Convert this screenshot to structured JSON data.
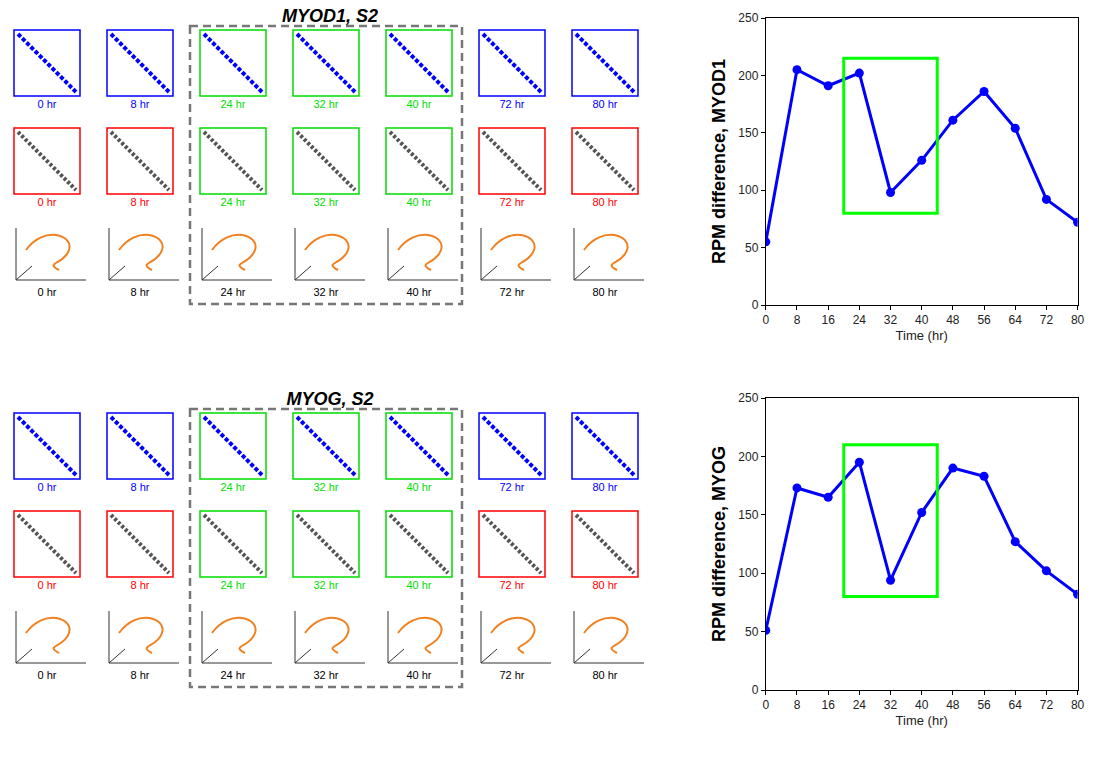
{
  "chart_data": [
    {
      "type": "line",
      "title": "MYOD1, S2",
      "xlabel": "Time (hr)",
      "ylabel": "RPM difference, MYOD1",
      "x": [
        0,
        8,
        16,
        24,
        32,
        40,
        48,
        56,
        64,
        72,
        80
      ],
      "values": [
        55,
        205,
        191,
        202,
        98,
        126,
        161,
        186,
        154,
        92,
        72
      ],
      "color": "#0000ff",
      "marker": "circle",
      "xlim": [
        0,
        80
      ],
      "xticks": [
        0,
        8,
        16,
        24,
        32,
        40,
        48,
        56,
        64,
        72,
        80
      ],
      "ylim": [
        0,
        250
      ],
      "yticks": [
        0,
        50,
        100,
        150,
        200,
        250
      ],
      "grid": false,
      "highlight": {
        "x": [
          20,
          44
        ],
        "y": [
          80,
          215
        ],
        "color": "#00ff00"
      },
      "panels": {
        "times": [
          "0 hr",
          "8 hr",
          "24 hr",
          "32 hr",
          "40 hr",
          "72 hr",
          "80 hr"
        ],
        "highlighted": [
          "24 hr",
          "32 hr",
          "40 hr"
        ]
      }
    },
    {
      "type": "line",
      "title": "MYOG, S2",
      "xlabel": "Time (hr)",
      "ylabel": "RPM difference, MYOG",
      "x": [
        0,
        8,
        16,
        24,
        32,
        40,
        48,
        56,
        64,
        72,
        80
      ],
      "values": [
        51,
        173,
        165,
        195,
        94,
        152,
        190,
        183,
        127,
        102,
        82
      ],
      "color": "#0000ff",
      "marker": "circle",
      "xlim": [
        0,
        80
      ],
      "xticks": [
        0,
        8,
        16,
        24,
        32,
        40,
        48,
        56,
        64,
        72,
        80
      ],
      "ylim": [
        0,
        250
      ],
      "yticks": [
        0,
        50,
        100,
        150,
        200,
        250
      ],
      "grid": false,
      "highlight": {
        "x": [
          20,
          44
        ],
        "y": [
          80,
          210
        ],
        "color": "#00ff00"
      },
      "panels": {
        "times": [
          "0 hr",
          "8 hr",
          "24 hr",
          "32 hr",
          "40 hr",
          "72 hr",
          "80 hr"
        ],
        "highlighted": [
          "24 hr",
          "32 hr",
          "40 hr"
        ]
      }
    }
  ]
}
